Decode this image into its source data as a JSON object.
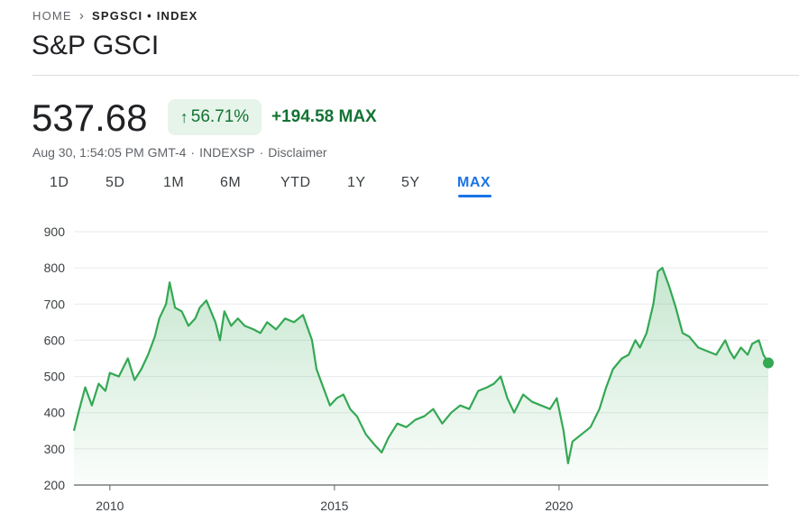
{
  "breadcrumb": {
    "home": "HOME",
    "current": "SPGSCI • INDEX"
  },
  "title": "S&P GSCI",
  "quote": {
    "price": "537.68",
    "percent_change": "56.71%",
    "absolute_change": "+194.58 MAX",
    "timestamp": "Aug 30, 1:54:05 PM GMT-4",
    "exchange": "INDEXSP",
    "disclaimer": "Disclaimer"
  },
  "ranges": [
    "1D",
    "5D",
    "1M",
    "6M",
    "YTD",
    "1Y",
    "5Y",
    "MAX"
  ],
  "active_range": "MAX",
  "colors": {
    "up": "#137333",
    "line": "#34a853",
    "accent": "#1a73e8"
  },
  "icons": {
    "separator": "chevron-right-icon",
    "change": "arrow-up-icon"
  },
  "chart_data": {
    "type": "area",
    "y_ticks": [
      200,
      300,
      400,
      500,
      600,
      700,
      800,
      900
    ],
    "ylim": [
      200,
      900
    ],
    "x_ticks": [
      {
        "label": "2010",
        "value": 2010.0
      },
      {
        "label": "2015",
        "value": 2015.0
      },
      {
        "label": "2020",
        "value": 2020.0
      }
    ],
    "xlim": [
      2009.2,
      2024.66
    ],
    "grid": true,
    "series": [
      {
        "x": [
          2009.2,
          2009.3,
          2009.45,
          2009.6,
          2009.75,
          2009.9,
          2010.0,
          2010.2,
          2010.4,
          2010.55,
          2010.7,
          2010.85,
          2011.0,
          2011.1,
          2011.25,
          2011.33,
          2011.45,
          2011.6,
          2011.75,
          2011.9,
          2012.0,
          2012.15,
          2012.35,
          2012.45,
          2012.55,
          2012.7,
          2012.85,
          2013.0,
          2013.2,
          2013.35,
          2013.5,
          2013.7,
          2013.9,
          2014.1,
          2014.3,
          2014.5,
          2014.6,
          2014.75,
          2014.9,
          2015.05,
          2015.2,
          2015.35,
          2015.5,
          2015.7,
          2015.9,
          2016.05,
          2016.2,
          2016.4,
          2016.6,
          2016.8,
          2017.0,
          2017.2,
          2017.4,
          2017.6,
          2017.8,
          2018.0,
          2018.2,
          2018.4,
          2018.55,
          2018.7,
          2018.85,
          2019.0,
          2019.2,
          2019.4,
          2019.6,
          2019.8,
          2019.95,
          2020.1,
          2020.2,
          2020.3,
          2020.5,
          2020.7,
          2020.9,
          2021.05,
          2021.2,
          2021.4,
          2021.55,
          2021.7,
          2021.8,
          2021.95,
          2022.1,
          2022.2,
          2022.3,
          2022.45,
          2022.6,
          2022.75,
          2022.9,
          2023.1,
          2023.3,
          2023.5,
          2023.7,
          2023.8,
          2023.9,
          2024.05,
          2024.2,
          2024.3,
          2024.45,
          2024.55,
          2024.66
        ],
        "values": [
          350,
          400,
          470,
          420,
          480,
          460,
          510,
          500,
          550,
          490,
          520,
          560,
          610,
          660,
          700,
          760,
          690,
          680,
          640,
          660,
          690,
          710,
          650,
          600,
          680,
          640,
          660,
          640,
          630,
          620,
          650,
          630,
          660,
          650,
          670,
          600,
          520,
          470,
          420,
          440,
          450,
          410,
          390,
          340,
          310,
          290,
          330,
          370,
          360,
          380,
          390,
          410,
          370,
          400,
          420,
          410,
          460,
          470,
          480,
          500,
          440,
          400,
          450,
          430,
          420,
          410,
          440,
          350,
          260,
          320,
          340,
          360,
          410,
          470,
          520,
          550,
          560,
          600,
          580,
          620,
          700,
          790,
          800,
          750,
          690,
          620,
          610,
          580,
          570,
          560,
          600,
          570,
          550,
          580,
          560,
          590,
          600,
          560,
          537.68
        ]
      }
    ]
  }
}
